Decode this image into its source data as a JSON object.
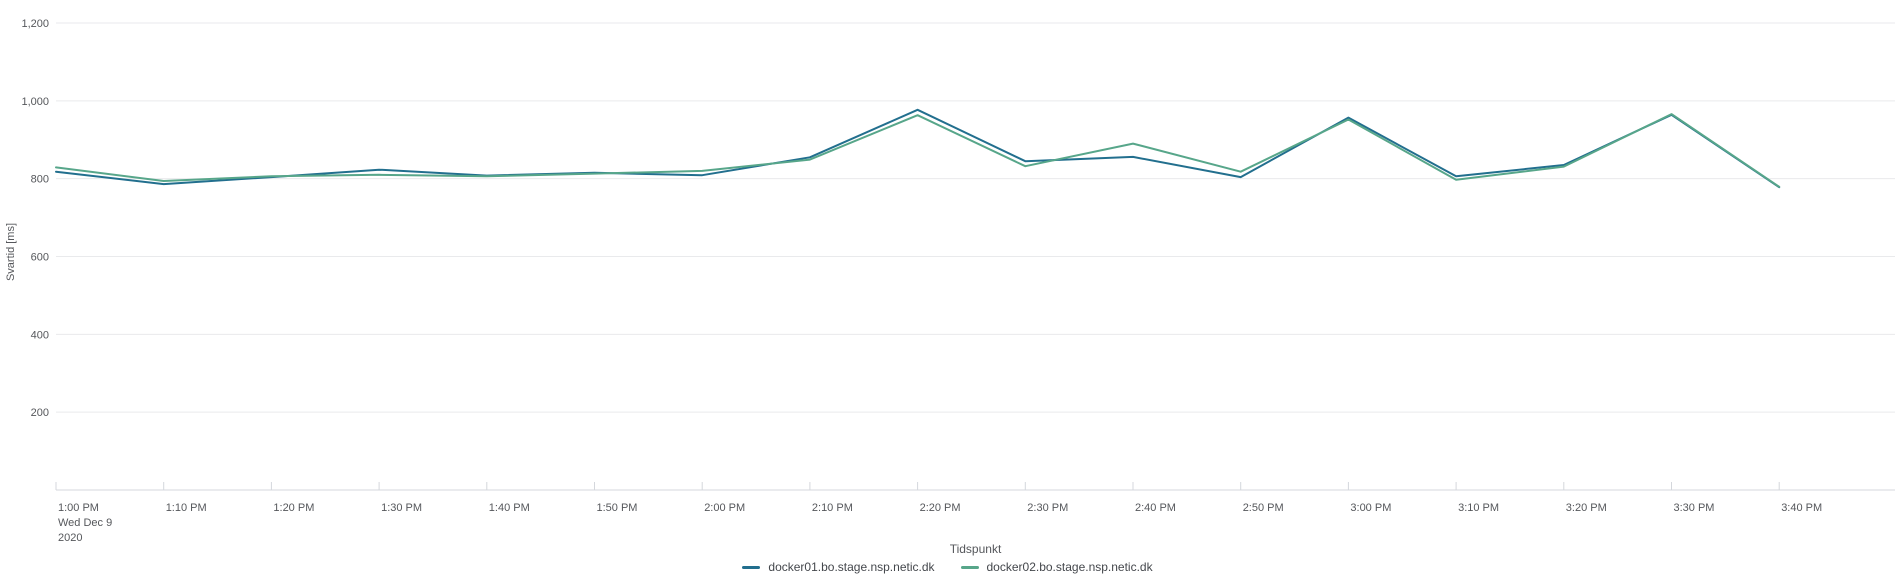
{
  "chart_data": {
    "type": "line",
    "title": "",
    "xlabel": "Tidspunkt",
    "ylabel": "Svartid [ms]",
    "x": [
      "1:00 PM",
      "1:10 PM",
      "1:20 PM",
      "1:30 PM",
      "1:40 PM",
      "1:50 PM",
      "2:00 PM",
      "2:10 PM",
      "2:20 PM",
      "2:30 PM",
      "2:40 PM",
      "2:50 PM",
      "3:00 PM",
      "3:10 PM",
      "3:20 PM",
      "3:30 PM",
      "3:40 PM"
    ],
    "x_start_date_lines": [
      "Wed Dec 9",
      "2020"
    ],
    "series": [
      {
        "name": "docker01.bo.stage.nsp.netic.dk",
        "color": "#226f8e",
        "values": [
          818,
          786,
          804,
          823,
          808,
          815,
          809,
          855,
          977,
          845,
          856,
          804,
          957,
          806,
          835,
          964,
          778
        ]
      },
      {
        "name": "docker02.bo.stage.nsp.netic.dk",
        "color": "#57a68a",
        "values": [
          829,
          794,
          806,
          810,
          806,
          813,
          820,
          849,
          963,
          832,
          890,
          818,
          952,
          797,
          831,
          966,
          779
        ]
      }
    ],
    "ylim": [
      0,
      1200
    ],
    "y_ticks": [
      200,
      400,
      600,
      800,
      1000,
      1200
    ],
    "y_tick_labels": [
      "200",
      "400",
      "600",
      "800",
      "1,000",
      "1,200"
    ],
    "grid": "horizontal",
    "legend_position": "bottom"
  },
  "colors": {
    "background": "#ffffff",
    "gridline": "#e9eaec",
    "axis_line": "#d4d7dc",
    "tick_text": "#55575b",
    "title_text": "#55575b",
    "legend_text": "#44474c",
    "series1": "#226f8e",
    "series2": "#57a68a"
  }
}
